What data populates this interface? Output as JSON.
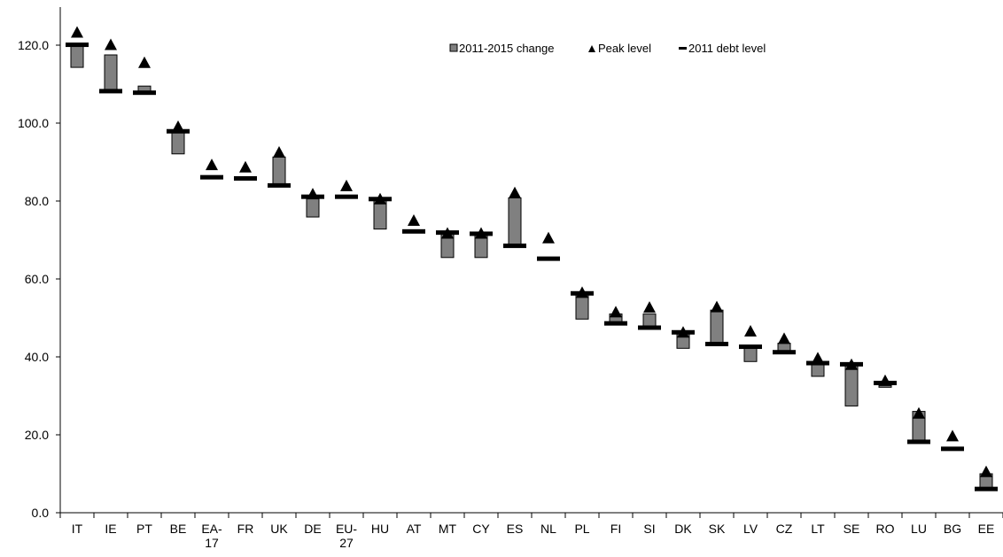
{
  "chart_data": {
    "type": "bar",
    "ylim": [
      0,
      130
    ],
    "yticks": [
      "0.0",
      "20.0",
      "40.0",
      "60.0",
      "80.0",
      "100.0",
      "120.0"
    ],
    "ytick_values": [
      0,
      20,
      40,
      60,
      80,
      100,
      120
    ],
    "grid": false,
    "legend_position": "top-right",
    "legend": {
      "change": "2011-2015 change",
      "peak": "Peak level",
      "debt": "2011 debt level"
    },
    "colors": {
      "bar_fill": "#808080",
      "bar_stroke": "#000000",
      "marker": "#000000"
    },
    "categories": [
      {
        "lines": [
          "IT"
        ]
      },
      {
        "lines": [
          "IE"
        ]
      },
      {
        "lines": [
          "PT"
        ]
      },
      {
        "lines": [
          "BE"
        ]
      },
      {
        "lines": [
          "EA-",
          "17"
        ]
      },
      {
        "lines": [
          "FR"
        ]
      },
      {
        "lines": [
          "UK"
        ]
      },
      {
        "lines": [
          "DE"
        ]
      },
      {
        "lines": [
          "EU-",
          "27"
        ]
      },
      {
        "lines": [
          "HU"
        ]
      },
      {
        "lines": [
          "AT"
        ]
      },
      {
        "lines": [
          "MT"
        ]
      },
      {
        "lines": [
          "CY"
        ]
      },
      {
        "lines": [
          "ES"
        ]
      },
      {
        "lines": [
          "NL"
        ]
      },
      {
        "lines": [
          "PL"
        ]
      },
      {
        "lines": [
          "FI"
        ]
      },
      {
        "lines": [
          "SI"
        ]
      },
      {
        "lines": [
          "DK"
        ]
      },
      {
        "lines": [
          "SK"
        ]
      },
      {
        "lines": [
          "LV"
        ]
      },
      {
        "lines": [
          "CZ"
        ]
      },
      {
        "lines": [
          "LT"
        ]
      },
      {
        "lines": [
          "SE"
        ]
      },
      {
        "lines": [
          "RO"
        ]
      },
      {
        "lines": [
          "LU"
        ]
      },
      {
        "lines": [
          "BG"
        ]
      },
      {
        "lines": [
          "EE"
        ]
      }
    ],
    "series": [
      {
        "name": "2011 debt level",
        "values": [
          120.1,
          108.2,
          107.8,
          97.9,
          86.1,
          85.8,
          84.0,
          81.1,
          81.1,
          80.5,
          72.2,
          71.9,
          71.6,
          68.5,
          65.2,
          56.3,
          48.6,
          47.5,
          46.3,
          43.3,
          42.6,
          41.2,
          38.4,
          38.1,
          33.3,
          18.2,
          16.4,
          6.1
        ]
      },
      {
        "name": "2011-2015 change",
        "range_low": [
          114.3,
          108.2,
          107.8,
          92.1,
          86.1,
          85.8,
          84.0,
          75.9,
          81.1,
          72.8,
          72.2,
          65.5,
          65.5,
          68.5,
          65.2,
          49.7,
          48.6,
          47.5,
          42.2,
          43.3,
          38.8,
          41.2,
          35.0,
          27.4,
          32.2,
          18.2,
          16.4,
          6.1
        ],
        "range_high": [
          120.1,
          117.5,
          109.5,
          97.9,
          86.1,
          85.8,
          91.3,
          81.1,
          81.1,
          80.5,
          72.2,
          71.9,
          71.6,
          80.8,
          65.2,
          56.3,
          51.0,
          51.0,
          46.3,
          52.0,
          42.6,
          43.5,
          38.4,
          38.1,
          33.3,
          26.0,
          16.4,
          10.0
        ]
      },
      {
        "name": "Peak level",
        "values": [
          123.3,
          120.1,
          115.5,
          99.1,
          89.3,
          88.7,
          92.5,
          81.8,
          83.9,
          80.5,
          75.0,
          71.7,
          71.7,
          82.1,
          70.5,
          56.5,
          51.5,
          52.7,
          46.3,
          52.8,
          46.6,
          44.7,
          39.7,
          38.0,
          33.9,
          25.5,
          19.7,
          10.5
        ]
      }
    ]
  }
}
